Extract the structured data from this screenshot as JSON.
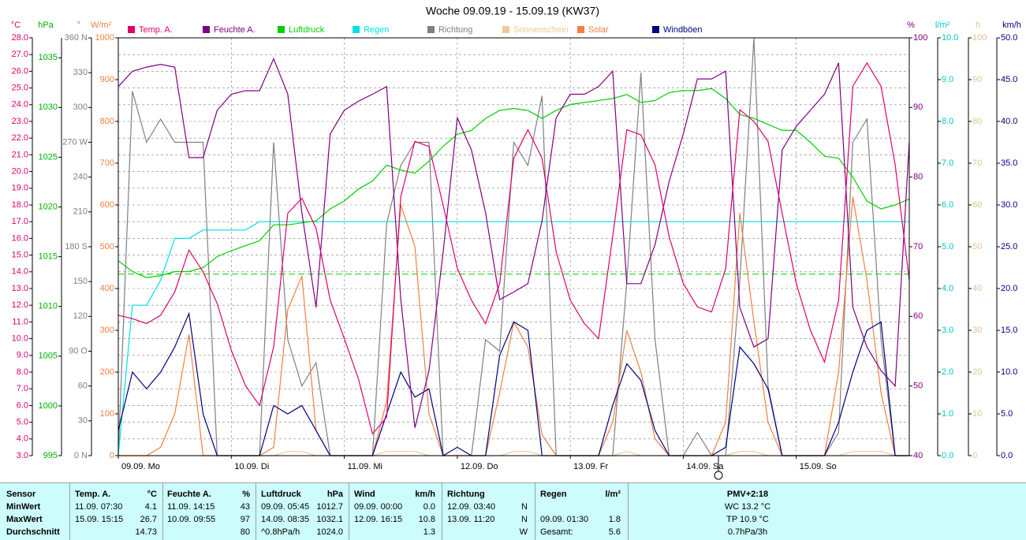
{
  "chart_data": {
    "type": "line",
    "title": "Woche 09.09.19 - 15.09.19 (KW37)",
    "xlim": [
      0,
      168
    ],
    "xticks": [
      {
        "value": 0,
        "label": "09.09. Mo"
      },
      {
        "value": 24,
        "label": "10.09. Di"
      },
      {
        "value": 48,
        "label": "11.09. Mi"
      },
      {
        "value": 72,
        "label": "12.09. Do"
      },
      {
        "value": 96,
        "label": "13.09. Fr"
      },
      {
        "value": 120,
        "label": "14.09. Sa"
      },
      {
        "value": 144,
        "label": "15.09. So"
      }
    ],
    "x": [
      0,
      3,
      6,
      9,
      12,
      15,
      18,
      21,
      24,
      27,
      30,
      33,
      36,
      39,
      42,
      45,
      48,
      51,
      54,
      57,
      60,
      63,
      66,
      69,
      72,
      75,
      78,
      81,
      84,
      87,
      90,
      93,
      96,
      99,
      102,
      105,
      108,
      111,
      114,
      117,
      120,
      123,
      126,
      129,
      132,
      135,
      138,
      141,
      144,
      147,
      150,
      153,
      156,
      159,
      162,
      165,
      168
    ],
    "grid": true,
    "grid_axis": 0,
    "axes": [
      {
        "label": "°C",
        "color": "#e0006c",
        "ylim": [
          3,
          28
        ],
        "yticks": [
          {
            "value": 3,
            "label": "3.0"
          },
          {
            "value": 4,
            "label": "4.0"
          },
          {
            "value": 5,
            "label": "5.0"
          },
          {
            "value": 6,
            "label": "6.0"
          },
          {
            "value": 7,
            "label": "7.0"
          },
          {
            "value": 8,
            "label": "8.0"
          },
          {
            "value": 9,
            "label": "9.0"
          },
          {
            "value": 10,
            "label": "10.0"
          },
          {
            "value": 11,
            "label": "11.0"
          },
          {
            "value": 12,
            "label": "12.0"
          },
          {
            "value": 13,
            "label": "13.0"
          },
          {
            "value": 14,
            "label": "14.0"
          },
          {
            "value": 15,
            "label": "15.0"
          },
          {
            "value": 16,
            "label": "16.0"
          },
          {
            "value": 17,
            "label": "17.0"
          },
          {
            "value": 18,
            "label": "18.0"
          },
          {
            "value": 19,
            "label": "19.0"
          },
          {
            "value": 20,
            "label": "20.0"
          },
          {
            "value": 21,
            "label": "21.0"
          },
          {
            "value": 22,
            "label": "22.0"
          },
          {
            "value": 23,
            "label": "23.0"
          },
          {
            "value": 24,
            "label": "24.0"
          },
          {
            "value": 25,
            "label": "25.0"
          },
          {
            "value": 26,
            "label": "26.0"
          },
          {
            "value": 27,
            "label": "27.0"
          },
          {
            "value": 28,
            "label": "28.0"
          }
        ]
      },
      {
        "label": "hPa",
        "color": "#00b000",
        "ylim": [
          995,
          1037
        ],
        "yticks": [
          995,
          1000,
          1005,
          1010,
          1015,
          1020,
          1025,
          1030,
          1035
        ]
      },
      {
        "label": "°",
        "color": "#808080",
        "ylim": [
          0,
          360
        ],
        "yticks": [
          {
            "value": 0,
            "label": "0 N"
          },
          30,
          60,
          {
            "value": 90,
            "label": "90 O"
          },
          120,
          150,
          {
            "value": 180,
            "label": "180 S"
          },
          210,
          240,
          {
            "value": 270,
            "label": "270 W"
          },
          300,
          330,
          {
            "value": 360,
            "label": "360 N"
          }
        ]
      },
      {
        "label": "W/m²",
        "color": "#f08040",
        "ylim": [
          0,
          1000
        ],
        "yticks": [
          0,
          100,
          200,
          300,
          400,
          500,
          600,
          700,
          800,
          900,
          1000
        ]
      },
      {
        "label": "%",
        "color": "#800080",
        "ylim": [
          40,
          100
        ],
        "yticks": [
          40,
          50,
          60,
          70,
          80,
          90,
          100
        ]
      },
      {
        "label": "l/m²",
        "color": "#00c8c8",
        "ylim": [
          0,
          10
        ],
        "yticks": [
          {
            "value": 0,
            "label": "0.0"
          },
          {
            "value": 1,
            "label": "1.0"
          },
          {
            "value": 2,
            "label": "2.0"
          },
          {
            "value": 3,
            "label": "3.0"
          },
          {
            "value": 4,
            "label": "4.0"
          },
          {
            "value": 5,
            "label": "5.0"
          },
          {
            "value": 6,
            "label": "6.0"
          },
          {
            "value": 7,
            "label": "7.0"
          },
          {
            "value": 8,
            "label": "8.0"
          },
          {
            "value": 9,
            "label": "9.0"
          },
          {
            "value": 10,
            "label": "10.0"
          }
        ]
      },
      {
        "label": "h",
        "color": "#e8c090",
        "ylim": [
          0,
          100
        ],
        "yticks": [
          0,
          10,
          20,
          30,
          40,
          50,
          60,
          70,
          80,
          90,
          100
        ]
      },
      {
        "label": "km/h",
        "color": "#000080",
        "ylim": [
          0,
          50
        ],
        "yticks": [
          {
            "value": 0,
            "label": "0.0"
          },
          {
            "value": 5,
            "label": "5.0"
          },
          {
            "value": 10,
            "label": "10.0"
          },
          {
            "value": 15,
            "label": "15.0"
          },
          {
            "value": 20,
            "label": "20.0"
          },
          {
            "value": 25,
            "label": "25.0"
          },
          {
            "value": 30,
            "label": "30.0"
          },
          {
            "value": 35,
            "label": "35.0"
          },
          {
            "value": 40,
            "label": "40.0"
          },
          {
            "value": 45,
            "label": "45.0"
          },
          {
            "value": 50,
            "label": "50.0"
          }
        ]
      }
    ],
    "reference_lines": [
      {
        "axis": 1,
        "value": 1013.25,
        "color": "#00d000"
      }
    ],
    "series": [
      {
        "name": "Temp. A.",
        "color": "#e0006c",
        "axis": 0,
        "values": [
          11.4,
          11.2,
          10.9,
          11.4,
          12.8,
          15.3,
          14.0,
          12.1,
          9.3,
          7.2,
          6.0,
          9.5,
          17.5,
          18.4,
          16.6,
          12.3,
          10.0,
          7.6,
          4.3,
          5.3,
          18.5,
          21.8,
          21.5,
          18.0,
          14.2,
          12.3,
          10.9,
          13.3,
          20.8,
          22.5,
          20.8,
          15.2,
          12.3,
          10.9,
          10.0,
          16.1,
          22.5,
          22.2,
          20.4,
          16.1,
          13.3,
          11.9,
          11.6,
          14.2,
          23.7,
          23.0,
          21.8,
          17.5,
          13.3,
          10.5,
          8.6,
          12.3,
          25.1,
          26.5,
          25.1,
          20.4,
          13.5
        ]
      },
      {
        "name": "Feuchte A.",
        "color": "#800080",
        "axis": 4,
        "values": [
          93.0,
          95.2,
          95.8,
          96.2,
          95.8,
          82.8,
          82.8,
          89.6,
          91.9,
          92.4,
          92.4,
          97.0,
          91.9,
          74.9,
          61.3,
          86.2,
          89.6,
          90.9,
          91.9,
          93.0,
          62.4,
          44.0,
          52.2,
          69.2,
          88.5,
          83.9,
          74.9,
          62.4,
          63.5,
          64.7,
          73.7,
          88.5,
          91.9,
          91.9,
          93.0,
          95.2,
          64.7,
          64.7,
          70.3,
          79.4,
          86.2,
          94.1,
          94.1,
          95.2,
          61.3,
          55.6,
          56.8,
          83.9,
          87.3,
          89.6,
          91.9,
          96.4,
          61.3,
          55.6,
          52.2,
          50.0,
          85.1
        ]
      },
      {
        "name": "Luftdruck",
        "color": "#00d000",
        "axis": 1,
        "values": [
          1014.6,
          1013.5,
          1012.9,
          1013.1,
          1013.5,
          1013.5,
          1013.9,
          1015.0,
          1015.6,
          1016.1,
          1016.6,
          1018.2,
          1018.2,
          1018.4,
          1018.6,
          1019.8,
          1020.6,
          1021.8,
          1022.6,
          1024.2,
          1023.7,
          1023.4,
          1024.6,
          1026.1,
          1027.3,
          1027.7,
          1028.9,
          1029.7,
          1029.9,
          1029.7,
          1028.9,
          1029.7,
          1030.3,
          1030.5,
          1030.7,
          1030.9,
          1031.3,
          1030.5,
          1030.7,
          1031.5,
          1031.7,
          1031.7,
          1031.9,
          1030.9,
          1029.3,
          1028.9,
          1028.3,
          1027.7,
          1027.7,
          1026.5,
          1025.1,
          1024.9,
          1023.0,
          1020.6,
          1019.8,
          1020.2,
          1020.8
        ]
      },
      {
        "name": "Regen",
        "color": "#00e0e0",
        "axis": 5,
        "values": [
          0.0,
          3.6,
          3.6,
          4.2,
          5.2,
          5.2,
          5.4,
          5.4,
          5.4,
          5.4,
          5.6,
          5.6,
          5.6,
          5.6,
          5.6,
          5.6,
          5.6,
          5.6,
          5.6,
          5.6,
          5.6,
          5.6,
          5.6,
          5.6,
          5.6,
          5.6,
          5.6,
          5.6,
          5.6,
          5.6,
          5.6,
          5.6,
          5.6,
          5.6,
          5.6,
          5.6,
          5.6,
          5.6,
          5.6,
          5.6,
          5.6,
          5.6,
          5.6,
          5.6,
          5.6,
          5.6,
          5.6,
          5.6,
          5.6,
          5.6,
          5.6,
          5.6,
          5.6,
          5.6,
          5.6,
          5.6,
          5.6
        ]
      },
      {
        "name": "Richtung",
        "color": "#808080",
        "axis": 2,
        "values": [
          0,
          314,
          270,
          290,
          270,
          270,
          270,
          0,
          0,
          0,
          0,
          270,
          100,
          60,
          80,
          0,
          0,
          0,
          0,
          200,
          250,
          270,
          270,
          0,
          0,
          0,
          100,
          90,
          270,
          250,
          310,
          0,
          0,
          0,
          0,
          0,
          150,
          330,
          100,
          0,
          0,
          20,
          0,
          0,
          150,
          360,
          60,
          0,
          0,
          0,
          0,
          20,
          270,
          290,
          100,
          0,
          0
        ]
      },
      {
        "name": "Sonnenschein",
        "color": "#f0c898",
        "axis": 6,
        "values": [
          0,
          0,
          0,
          0,
          0,
          0,
          0,
          0,
          0,
          0,
          0,
          0,
          1,
          1,
          0,
          0,
          0,
          0,
          0,
          1,
          1,
          1,
          0,
          0,
          0,
          0,
          0,
          0,
          1,
          1,
          0,
          0,
          0,
          0,
          0,
          0,
          1,
          0,
          0,
          0,
          0,
          0,
          0,
          0,
          1,
          1,
          0,
          0,
          0,
          0,
          0,
          0,
          1,
          1,
          1,
          0,
          0
        ]
      },
      {
        "name": "Solar",
        "color": "#f08040",
        "axis": 3,
        "values": [
          0,
          0,
          0,
          20,
          100,
          290,
          0,
          0,
          0,
          0,
          0,
          20,
          350,
          430,
          60,
          0,
          0,
          0,
          0,
          130,
          600,
          500,
          100,
          0,
          0,
          0,
          0,
          150,
          320,
          260,
          50,
          0,
          0,
          0,
          0,
          80,
          300,
          200,
          40,
          0,
          0,
          0,
          0,
          80,
          580,
          320,
          80,
          0,
          0,
          0,
          0,
          200,
          620,
          420,
          150,
          0,
          0
        ]
      },
      {
        "name": "Windböen",
        "color": "#000080",
        "axis": 7,
        "values": [
          3,
          10,
          8,
          10,
          13,
          17,
          5,
          0,
          0,
          0,
          0,
          6,
          5,
          6,
          3,
          0,
          0,
          0,
          0,
          5,
          10,
          7,
          8,
          0,
          1,
          0,
          0,
          12,
          16,
          15,
          0,
          0,
          0,
          0,
          0,
          6,
          11,
          9,
          3,
          0,
          0,
          0,
          0,
          1,
          13,
          11,
          8,
          0,
          0,
          0,
          0,
          4,
          10,
          15,
          16,
          0,
          0
        ]
      }
    ]
  },
  "table": {
    "header": [
      "Sensor",
      "Temp. A.",
      "°C",
      "Feuchte A.",
      "%",
      "Luftdruck",
      "hPa",
      "Wind",
      "km/h",
      "Richtung",
      null,
      "Regen",
      "l/m²",
      "PMV+2:18"
    ],
    "rows": [
      {
        "label": "MinWert",
        "cells": [
          "11.09. 07:30",
          "4.1",
          "11.09. 14:15",
          "43",
          "09.09. 05:45",
          "1012.7",
          "09.09. 00:00",
          "0.0",
          "12.09. 03:40",
          "N",
          null,
          null,
          "WC 13.2 °C"
        ]
      },
      {
        "label": "MaxWert",
        "cells": [
          "15.09. 15:15",
          "26.7",
          "10.09. 09:55",
          "97",
          "14.09. 08:35",
          "1032.1",
          "12.09. 16:15",
          "10.8",
          "13.09. 11:20",
          "N",
          "09.09. 01:30",
          "1.8",
          "TP 10.9 °C"
        ]
      },
      {
        "label": "Durchschnitt",
        "cells": [
          null,
          "14.73",
          null,
          "80",
          "^0.8hPa/h",
          "1024.0",
          null,
          "1.3",
          null,
          "W",
          "Gesamt:",
          "5.6",
          "0.7hPa/3h"
        ]
      }
    ]
  }
}
